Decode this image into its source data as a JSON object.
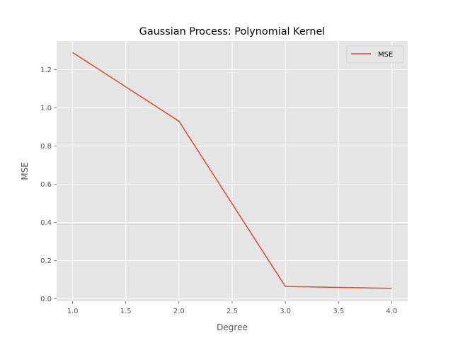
{
  "chart_data": {
    "type": "line",
    "title": "Gaussian Process: Polynomial Kernel",
    "xlabel": "Degree",
    "ylabel": "MSE",
    "x": [
      1.0,
      2.0,
      3.0,
      4.0
    ],
    "series": [
      {
        "name": "MSE",
        "values": [
          1.29,
          0.93,
          0.065,
          0.055
        ],
        "color": "#E24A33"
      }
    ],
    "xlim": [
      0.85,
      4.15
    ],
    "ylim": [
      -0.0125,
      1.35
    ],
    "xticks": [
      1.0,
      1.5,
      2.0,
      2.5,
      3.0,
      3.5,
      4.0
    ],
    "xtick_labels": [
      "1.0",
      "1.5",
      "2.0",
      "2.5",
      "3.0",
      "3.5",
      "4.0"
    ],
    "yticks": [
      0.0,
      0.2,
      0.4,
      0.6,
      0.8,
      1.0,
      1.2
    ],
    "ytick_labels": [
      "0.0",
      "0.2",
      "0.4",
      "0.6",
      "0.8",
      "1.0",
      "1.2"
    ],
    "grid": true,
    "legend_position": "top-right",
    "style": {
      "background": "#E5E5E5",
      "grid_color": "#FFFFFF",
      "tick_color": "#555555"
    }
  }
}
